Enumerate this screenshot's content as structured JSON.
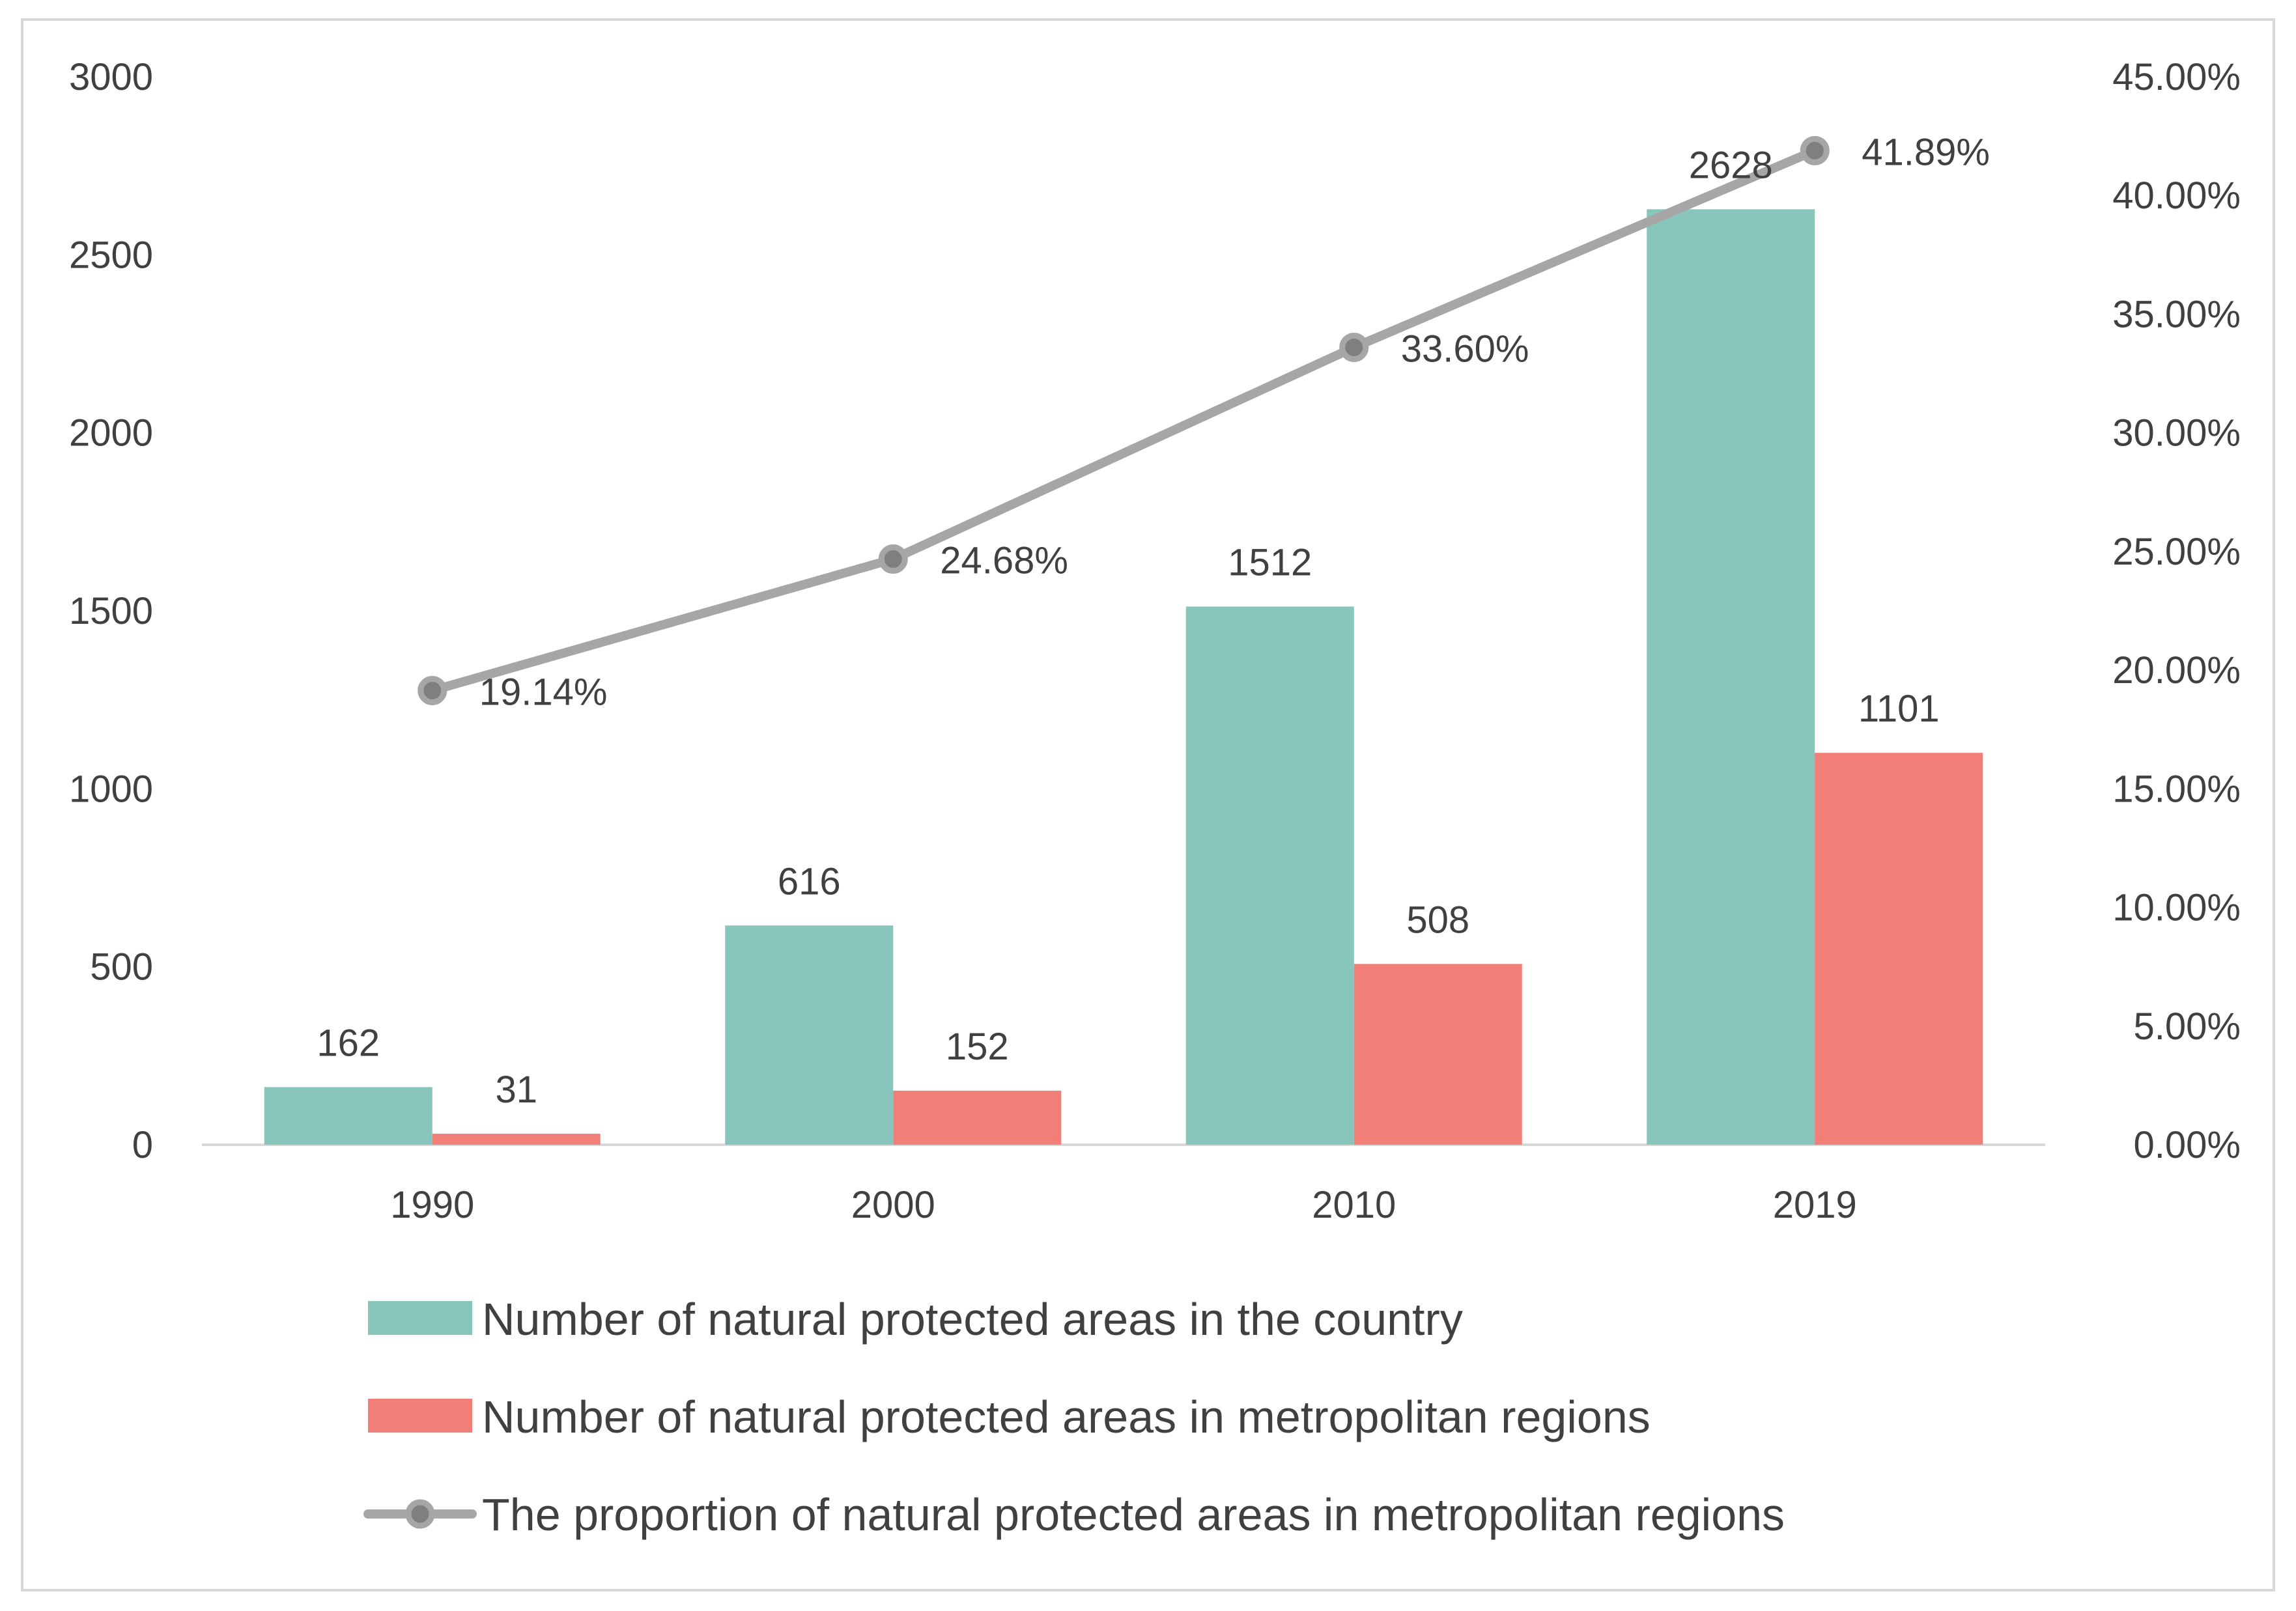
{
  "chart_data": {
    "type": "bar",
    "categories": [
      "1990",
      "2000",
      "2010",
      "2019"
    ],
    "series": [
      {
        "name": "Number of natural protected areas in the country",
        "type": "bar",
        "axis": "left",
        "color": "#88c6bc",
        "values": [
          162,
          616,
          1512,
          2628
        ],
        "labels": [
          "162",
          "616",
          "1512",
          "2628"
        ]
      },
      {
        "name": "Number of natural protected areas in metropolitan regions",
        "type": "bar",
        "axis": "left",
        "color": "#f27f77",
        "values": [
          31,
          152,
          508,
          1101
        ],
        "labels": [
          "31",
          "152",
          "508",
          "1101"
        ]
      },
      {
        "name": "The proportion of natural protected areas  in metropolitan regions",
        "type": "line",
        "axis": "right",
        "color": "#a6a6a6",
        "marker_color": "#7f7f7f",
        "values": [
          19.14,
          24.68,
          33.6,
          41.89
        ],
        "labels": [
          "19.14%",
          "24.68%",
          "33.60%",
          "41.89%"
        ]
      }
    ],
    "left_axis": {
      "range": [
        0,
        3000
      ],
      "ticks": [
        0,
        500,
        1000,
        1500,
        2000,
        2500,
        3000
      ],
      "tick_labels": [
        "0",
        "500",
        "1000",
        "1500",
        "2000",
        "2500",
        "3000"
      ]
    },
    "right_axis": {
      "range": [
        0,
        45
      ],
      "ticks": [
        0,
        5,
        10,
        15,
        20,
        25,
        30,
        35,
        40,
        45
      ],
      "tick_labels": [
        "0.00%",
        "5.00%",
        "10.00%",
        "15.00%",
        "20.00%",
        "25.00%",
        "30.00%",
        "35.00%",
        "40.00%",
        "45.00%"
      ]
    },
    "grid": false,
    "legend": "bottom",
    "title": "",
    "xlabel": "",
    "ylabel": ""
  }
}
